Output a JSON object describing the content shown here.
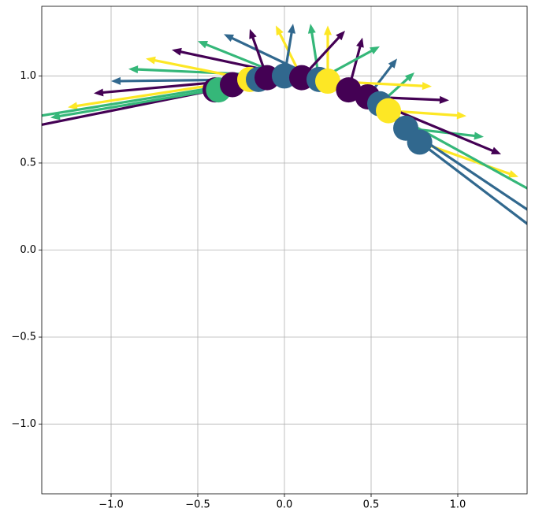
{
  "chart_data": {
    "type": "quiver",
    "xlim": [
      -1.4,
      1.4
    ],
    "ylim": [
      -1.4,
      1.4
    ],
    "xticks": [
      {
        "value": -1.0,
        "label": "−1.0"
      },
      {
        "value": -0.5,
        "label": "−0.5"
      },
      {
        "value": 0,
        "label": "0.0"
      },
      {
        "value": 0.5,
        "label": "0.5"
      },
      {
        "value": 1.0,
        "label": "1.0"
      }
    ],
    "yticks": [
      {
        "value": -1.0,
        "label": "−1.0"
      },
      {
        "value": -0.5,
        "label": "−0.5"
      },
      {
        "value": 0,
        "label": "0.0"
      },
      {
        "value": 0.5,
        "label": "0.5"
      },
      {
        "value": 1.0,
        "label": "1.0"
      }
    ],
    "grid": true,
    "palette": [
      "#440154",
      "#31688e",
      "#35b779",
      "#fde725"
    ],
    "arrows": {
      "x": [
        -0.4,
        -0.4,
        -0.2,
        -0.1,
        -0.15,
        0,
        -0.2,
        0.1,
        0,
        0.2,
        -0.1,
        0.1,
        0,
        0.2,
        0.25,
        0.1,
        0.37,
        0.2,
        0.48,
        0.55,
        0.25,
        0.48,
        0.6,
        0.7,
        0.55,
        0.78,
        0.7,
        0.78,
        0.37,
        -0.3
      ],
      "y": [
        0.92,
        0.92,
        0.98,
        0.99,
        0.98,
        1.0,
        0.98,
        0.99,
        1.0,
        0.98,
        0.99,
        0.99,
        1.0,
        0.98,
        0.97,
        0.99,
        0.92,
        0.98,
        0.88,
        0.84,
        0.97,
        0.88,
        0.8,
        0.7,
        0.84,
        0.62,
        0.7,
        0.62,
        0.92,
        0.95
      ],
      "u": [
        -1.2,
        -0.95,
        -1.05,
        -1.0,
        -0.85,
        -0.9,
        -0.6,
        -0.75,
        -0.5,
        -0.55,
        -0.1,
        -0.15,
        0.05,
        -0.05,
        0,
        0.25,
        0.08,
        0.35,
        0.17,
        0.2,
        0.6,
        0.47,
        0.45,
        0.45,
        0.7,
        0.57,
        0.9,
        0.82,
        1.13,
        -1.3
      ],
      "v": [
        -0.24,
        -0.16,
        -0.16,
        -0.09,
        -0.01,
        0.04,
        0.12,
        0.16,
        0.2,
        0.26,
        0.28,
        0.3,
        0.3,
        0.32,
        0.32,
        0.27,
        0.3,
        0.19,
        0.22,
        0.18,
        -0.03,
        -0.02,
        -0.03,
        -0.05,
        -0.29,
        -0.2,
        -0.6,
        -0.62,
        -0.62,
        -0.21
      ],
      "color_index": [
        0,
        2,
        3,
        0,
        1,
        2,
        3,
        0,
        2,
        1,
        0,
        3,
        1,
        2,
        3,
        0,
        0,
        2,
        1,
        2,
        3,
        0,
        3,
        2,
        0,
        3,
        1,
        1,
        2,
        2
      ]
    },
    "points": {
      "x": [
        -0.4,
        -0.38,
        -0.3,
        -0.2,
        -0.15,
        -0.1,
        0,
        0.1,
        0.2,
        0.25,
        0.37,
        0.48,
        0.55,
        0.6,
        0.7,
        0.78
      ],
      "y": [
        0.92,
        0.92,
        0.95,
        0.98,
        0.98,
        0.99,
        1.0,
        0.99,
        0.98,
        0.97,
        0.92,
        0.88,
        0.84,
        0.8,
        0.7,
        0.62
      ],
      "color_index": [
        0,
        2,
        0,
        3,
        1,
        0,
        1,
        0,
        1,
        3,
        0,
        0,
        1,
        3,
        1,
        1
      ]
    }
  }
}
